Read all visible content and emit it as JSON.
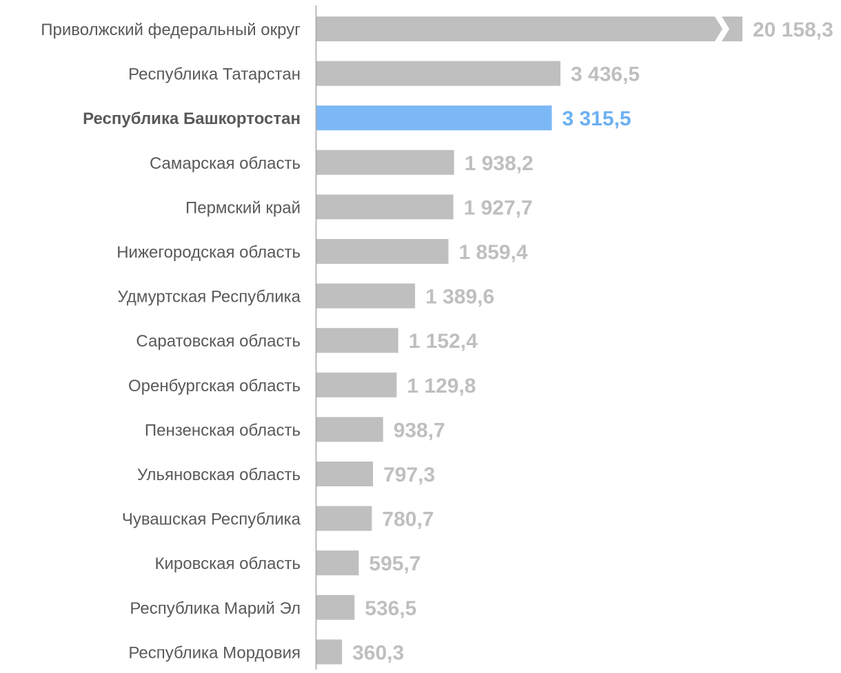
{
  "chart_data": {
    "type": "bar",
    "orientation": "horizontal",
    "title": "",
    "xlabel": "",
    "ylabel": "",
    "grid": false,
    "legend": "none",
    "axis_break_on": [
      "Приволжский федеральный округ"
    ],
    "highlight": "Республика Башкортостан",
    "categories": [
      "Приволжский федеральный округ",
      "Республика Татарстан",
      "Республика Башкортостан",
      "Самарская область",
      "Пермский край",
      "Нижегородская область",
      "Удмуртская Республика",
      "Саратовская область",
      "Оренбургская область",
      "Пензенская область",
      "Ульяновская область",
      "Чувашская Республика",
      "Кировская область",
      "Республика Марий Эл",
      "Республика Мордовия"
    ],
    "values": [
      20158.3,
      3436.5,
      3315.5,
      1938.2,
      1927.7,
      1859.4,
      1389.6,
      1152.4,
      1129.8,
      938.7,
      797.3,
      780.7,
      595.7,
      536.5,
      360.3
    ],
    "value_labels": [
      "20 158,3",
      "3 436,5",
      "3 315,5",
      "1 938,2",
      "1 927,7",
      "1 859,4",
      "1 389,6",
      "1 152,4",
      "1 129,8",
      "938,7",
      "797,3",
      "780,7",
      "595,7",
      "536,5",
      "360,3"
    ],
    "colors": {
      "bar": "#bfbfbf",
      "highlight_bar": "#7cb8f5",
      "category_text": "#595959",
      "value_text": "#bfbfbf",
      "highlight_value_text": "#6cb0f2",
      "axis": "#a6a6a6",
      "break_mark": "#ffffff"
    }
  }
}
